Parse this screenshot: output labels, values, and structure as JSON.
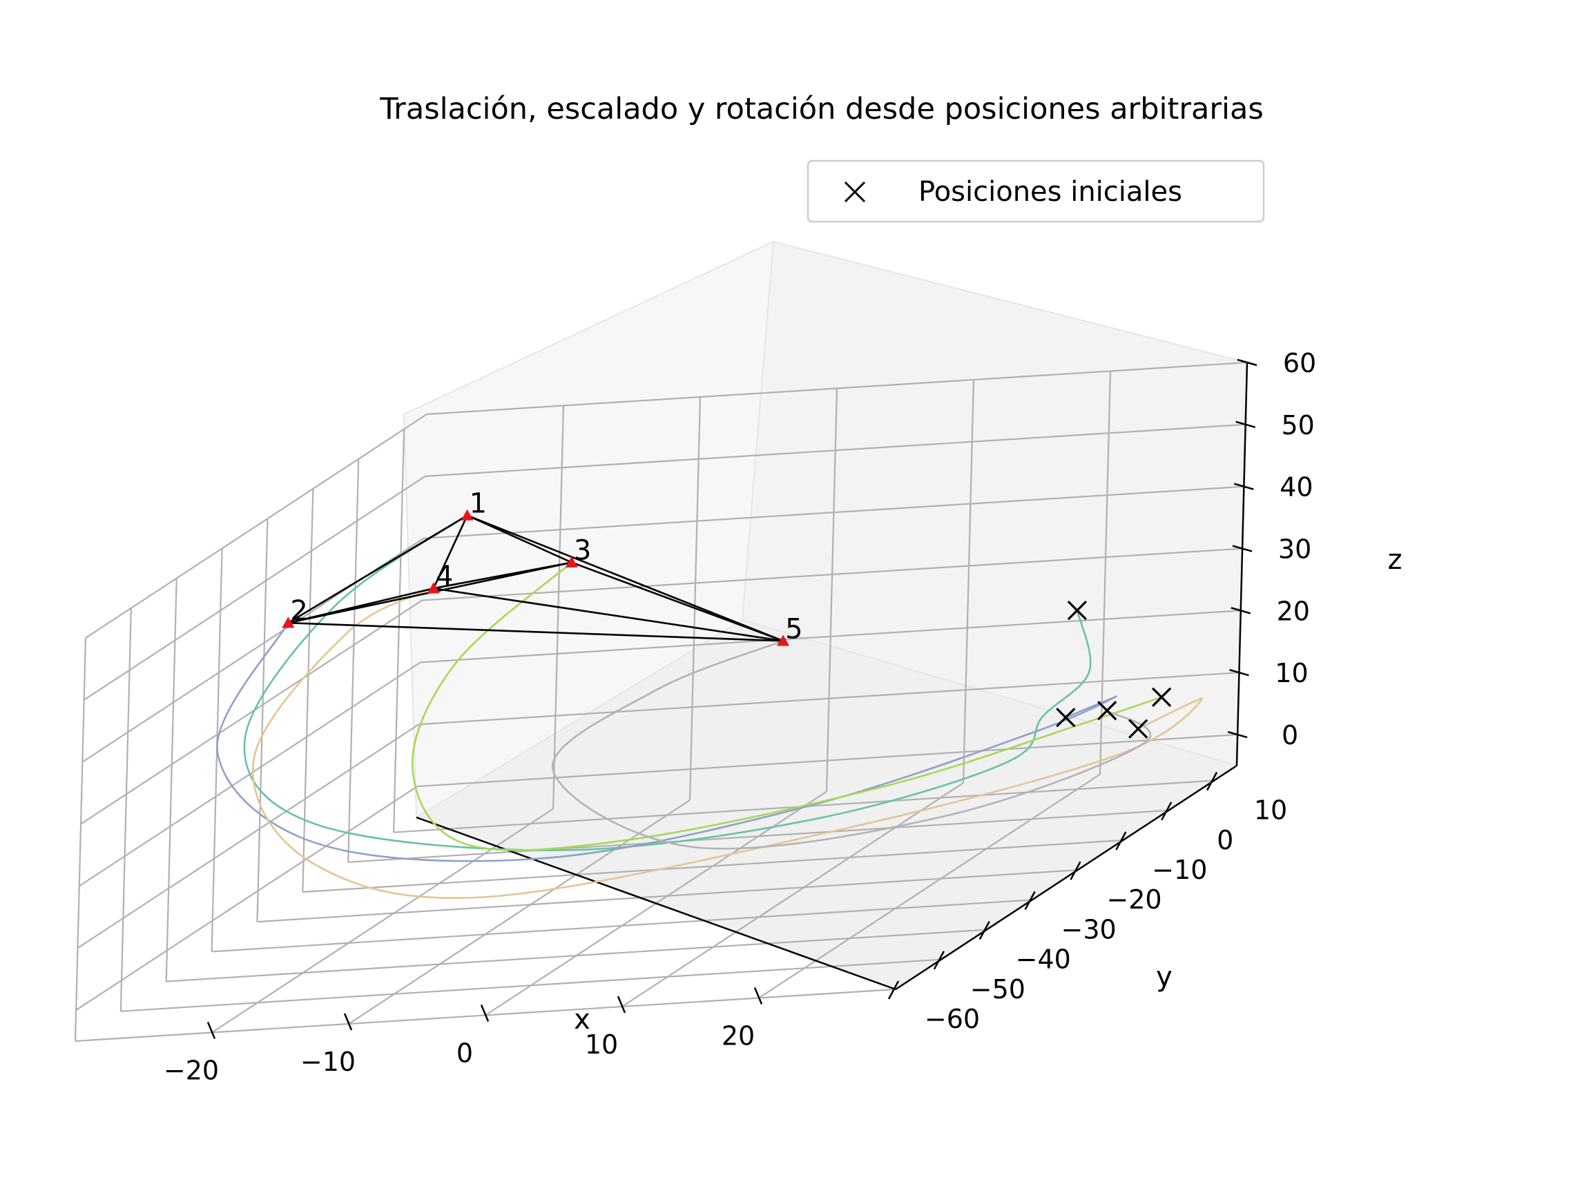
{
  "chart_data": {
    "type": "line",
    "projection": "3d",
    "title": "Traslación, escalado y rotación desde posiciones arbitrarias",
    "xlabel": "x",
    "ylabel": "y",
    "zlabel": "z",
    "xlim": [
      -30,
      30
    ],
    "ylim": [
      -60,
      15
    ],
    "zlim": [
      -5,
      60
    ],
    "xticks": [
      -20,
      -10,
      0,
      10,
      20
    ],
    "yticks": [
      -60,
      -50,
      -40,
      -30,
      -20,
      -10,
      0,
      10
    ],
    "zticks": [
      0,
      10,
      20,
      30,
      40,
      50,
      60
    ],
    "xtick_labels": [
      "−20",
      "−10",
      "0",
      "10",
      "20"
    ],
    "ytick_labels": [
      "−60",
      "−50",
      "−40",
      "−30",
      "−20",
      "−10",
      "0",
      "10"
    ],
    "ztick_labels": [
      "0",
      "10",
      "20",
      "30",
      "40",
      "50",
      "60"
    ],
    "grid": true,
    "legend": {
      "position": "top-right",
      "entries": [
        {
          "label": "Posiciones iniciales",
          "marker": "x",
          "color": "#000000"
        }
      ]
    },
    "colors": {
      "target": "#e8141a",
      "edges": "#000000",
      "start_marker": "#000000",
      "paths": [
        "#66c2a5",
        "#8da0cb",
        "#a6d854",
        "#e5c494",
        "#b3b3b3"
      ]
    },
    "final_positions": [
      {
        "label": "1",
        "x": -18,
        "y": -12,
        "z": 55
      },
      {
        "label": "2",
        "x": -26,
        "y": -27,
        "z": 46
      },
      {
        "label": "3",
        "x": -6,
        "y": -25,
        "z": 52
      },
      {
        "label": "4",
        "x": -20,
        "y": -13,
        "z": 44
      },
      {
        "label": "5",
        "x": 8,
        "y": -20,
        "z": 35
      }
    ],
    "edges": [
      [
        0,
        1
      ],
      [
        0,
        2
      ],
      [
        0,
        3
      ],
      [
        0,
        4
      ],
      [
        1,
        2
      ],
      [
        1,
        3
      ],
      [
        1,
        4
      ],
      [
        2,
        3
      ],
      [
        2,
        4
      ],
      [
        3,
        4
      ]
    ],
    "initial_positions": [
      {
        "x": 25,
        "y": 8,
        "z": 5
      },
      {
        "x": 20,
        "y": 7,
        "z": 8
      },
      {
        "x": 19,
        "y": 12,
        "z": 23
      },
      {
        "x": 26,
        "y": 10,
        "z": 9
      },
      {
        "x": 24,
        "y": 4,
        "z": 10
      }
    ],
    "trajectories": [
      [
        [
          19,
          12,
          23
        ],
        [
          20,
          12,
          13
        ],
        [
          18,
          8,
          8
        ],
        [
          20,
          -6,
          7
        ],
        [
          12,
          -25,
          8
        ],
        [
          -3,
          -35,
          10
        ],
        [
          -20,
          -38,
          18
        ],
        [
          -27,
          -33,
          30
        ],
        [
          -25,
          -20,
          45
        ],
        [
          -18,
          -12,
          55
        ]
      ],
      [
        [
          20,
          7,
          8
        ],
        [
          23,
          9,
          10
        ],
        [
          20,
          0,
          9
        ],
        [
          10,
          -20,
          8
        ],
        [
          -5,
          -33,
          8
        ],
        [
          -20,
          -38,
          15
        ],
        [
          -28,
          -36,
          30
        ],
        [
          -26,
          -27,
          46
        ]
      ],
      [
        [
          26,
          10,
          9
        ],
        [
          22,
          4,
          8
        ],
        [
          14,
          -14,
          8
        ],
        [
          0,
          -28,
          8
        ],
        [
          -10,
          -35,
          12
        ],
        [
          -14,
          -35,
          25
        ],
        [
          -12,
          -32,
          40
        ],
        [
          -6,
          -25,
          52
        ]
      ],
      [
        [
          25,
          8,
          5
        ],
        [
          28,
          13,
          7
        ],
        [
          28,
          -6,
          7
        ],
        [
          15,
          -30,
          8
        ],
        [
          -5,
          -46,
          8
        ],
        [
          -18,
          -45,
          15
        ],
        [
          -24,
          -40,
          30
        ],
        [
          -23,
          -23,
          42
        ],
        [
          -20,
          -13,
          44
        ]
      ],
      [
        [
          24,
          4,
          10
        ],
        [
          28,
          0,
          6
        ],
        [
          20,
          -20,
          5
        ],
        [
          5,
          -30,
          7
        ],
        [
          -6,
          -28,
          20
        ],
        [
          0,
          -24,
          30
        ],
        [
          8,
          -20,
          35
        ]
      ]
    ]
  }
}
